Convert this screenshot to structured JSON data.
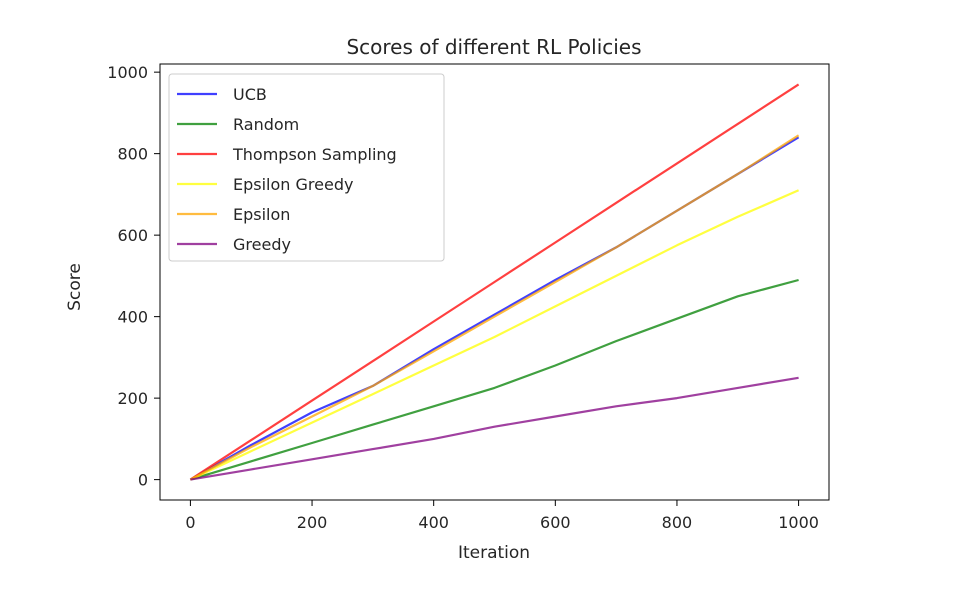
{
  "chart_data": {
    "type": "line",
    "title": "Scores of different RL Policies",
    "xlabel": "Iteration",
    "ylabel": "Score",
    "xlim": [
      -50,
      1050
    ],
    "ylim": [
      -50,
      1020
    ],
    "xticks": [
      0,
      200,
      400,
      600,
      800,
      1000
    ],
    "yticks": [
      0,
      200,
      400,
      600,
      800,
      1000
    ],
    "grid": false,
    "legend_position": "top-left",
    "x": [
      0,
      100,
      200,
      300,
      400,
      500,
      600,
      700,
      800,
      900,
      1000
    ],
    "series": [
      {
        "name": "UCB",
        "color": "#0000ff",
        "values": [
          0,
          85,
          165,
          230,
          320,
          405,
          490,
          570,
          660,
          750,
          840
        ]
      },
      {
        "name": "Random",
        "color": "#008000",
        "values": [
          0,
          45,
          90,
          135,
          180,
          225,
          280,
          340,
          395,
          450,
          490
        ]
      },
      {
        "name": "Thompson Sampling",
        "color": "#ff0000",
        "values": [
          0,
          97,
          194,
          291,
          388,
          485,
          582,
          679,
          776,
          873,
          970
        ]
      },
      {
        "name": "Epsilon Greedy",
        "color": "#ffff00",
        "values": [
          0,
          70,
          140,
          210,
          280,
          350,
          425,
          500,
          575,
          645,
          710
        ]
      },
      {
        "name": "Epsilon",
        "color": "#ffa500",
        "values": [
          0,
          80,
          155,
          230,
          315,
          400,
          485,
          570,
          660,
          750,
          845
        ]
      },
      {
        "name": "Greedy",
        "color": "#800080",
        "values": [
          0,
          25,
          50,
          75,
          100,
          130,
          155,
          180,
          200,
          225,
          250
        ]
      }
    ]
  }
}
